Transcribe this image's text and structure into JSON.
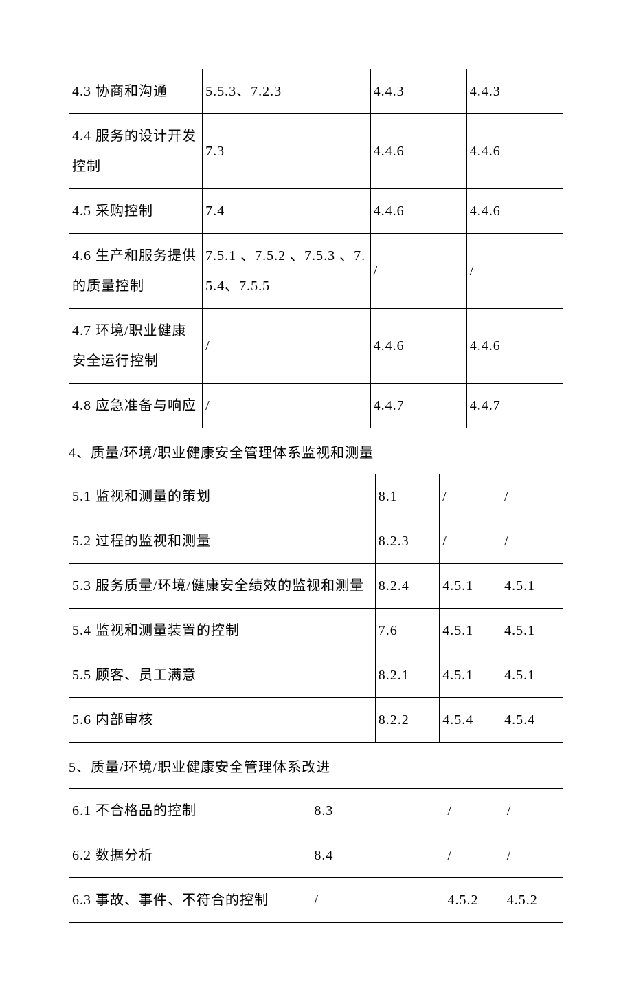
{
  "table1": {
    "rows": [
      [
        "4.3 协商和沟通",
        "5.5.3、7.2.3",
        "4.4.3",
        "4.4.3"
      ],
      [
        "4.4 服务的设计开发控制",
        "7.3",
        "4.4.6",
        "4.4.6"
      ],
      [
        "4.5 采购控制",
        "7.4",
        "4.4.6",
        "4.4.6"
      ],
      [
        "4.6 生产和服务提供的质量控制",
        "7.5.1 、7.5.2 、7.5.3 、7.5.4、7.5.5",
        "/",
        "/"
      ],
      [
        "4.7 环境/职业健康安全运行控制",
        "/",
        "4.4.6",
        "4.4.6"
      ],
      [
        "4.8 应急准备与响应",
        "/",
        "4.4.7",
        "4.4.7"
      ]
    ]
  },
  "heading1": "4、质量/环境/职业健康安全管理体系监视和测量",
  "table2": {
    "rows": [
      [
        "5.1 监视和测量的策划",
        "8.1",
        "/",
        "/"
      ],
      [
        "5.2 过程的监视和测量",
        "8.2.3",
        "/",
        "/"
      ],
      [
        "5.3 服务质量/环境/健康安全绩效的监视和测量",
        "8.2.4",
        "4.5.1",
        "4.5.1"
      ],
      [
        "5.4 监视和测量装置的控制",
        "7.6",
        "4.5.1",
        "4.5.1"
      ],
      [
        "5.5 顾客、员工满意",
        "8.2.1",
        "4.5.1",
        "4.5.1"
      ],
      [
        "5.6 内部审核",
        "8.2.2",
        "4.5.4",
        "4.5.4"
      ]
    ]
  },
  "heading2": "5、质量/环境/职业健康安全管理体系改进",
  "table3": {
    "rows": [
      [
        "6.1 不合格品的控制",
        "8.3",
        "/",
        "/"
      ],
      [
        "6.2 数据分析",
        "8.4",
        "/",
        "/"
      ],
      [
        "6.3 事故、事件、不符合的控制",
        "/",
        "4.5.2",
        "4.5.2"
      ]
    ]
  }
}
